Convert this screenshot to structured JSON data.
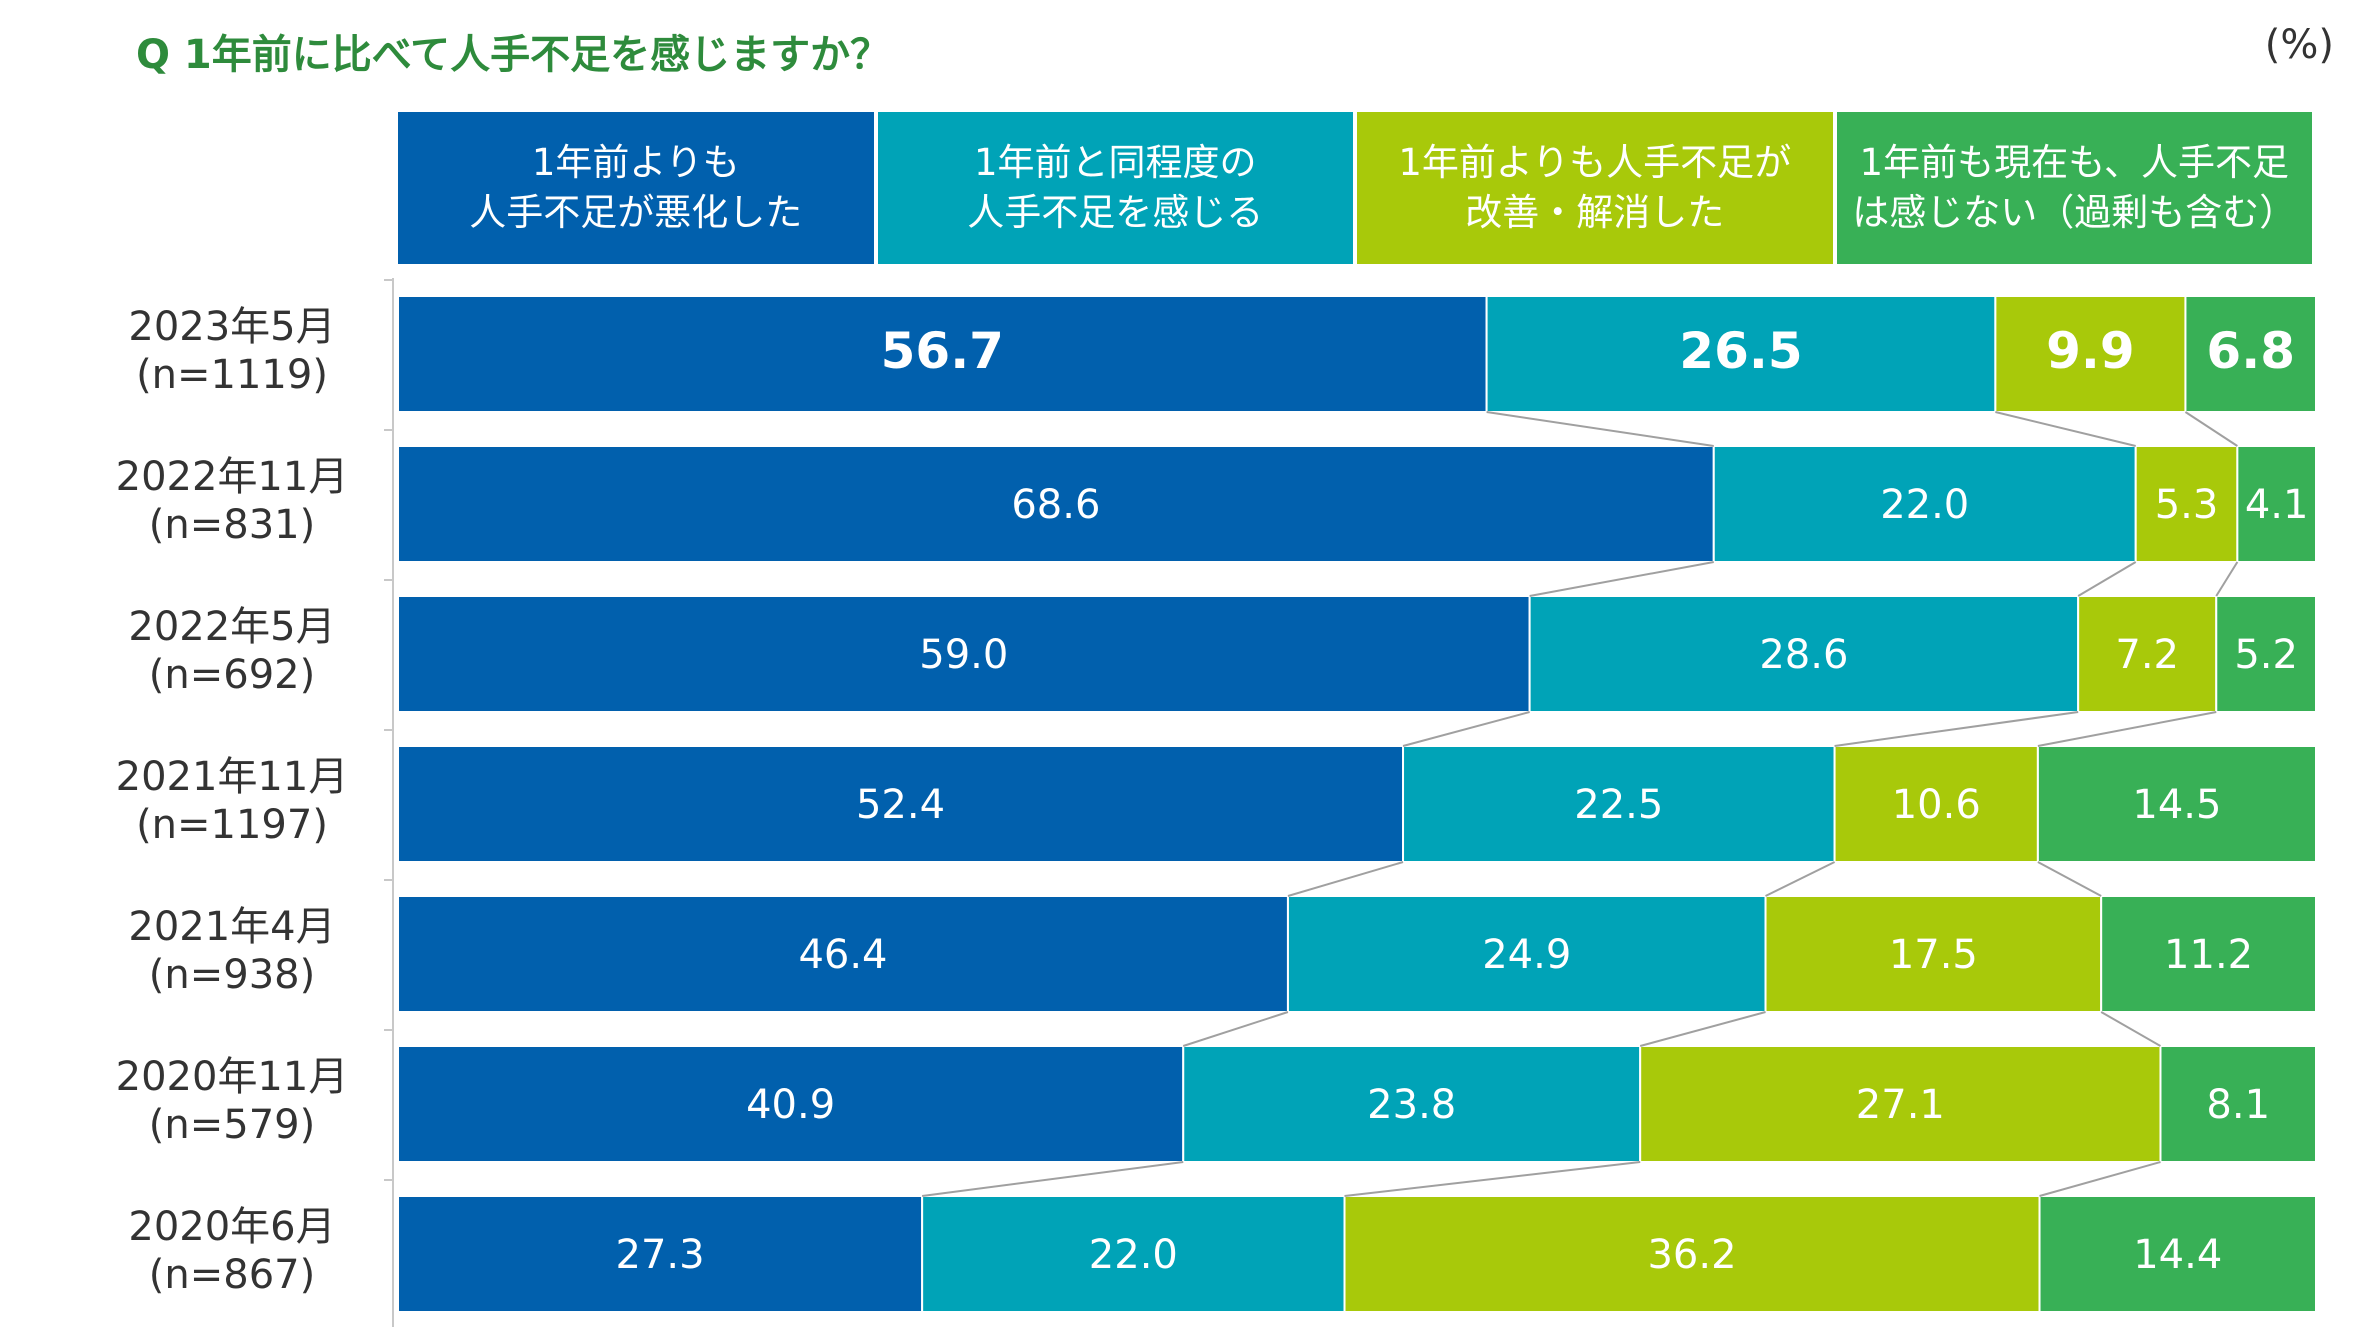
{
  "title": "Q 1年前に比べて人手不足を感じますか？",
  "unit": "(%)",
  "colors": [
    "#0160ad",
    "#00a3b7",
    "#a8c90a",
    "#38b056"
  ],
  "legend": [
    {
      "label": "1年前よりも\n人手不足が悪化した"
    },
    {
      "label": "1年前と同程度の\n人手不足を感じる"
    },
    {
      "label": "1年前よりも人手不足が\n改善・解消した"
    },
    {
      "label": "1年前も現在も、人手不足\nは感じない（過剰も含む）"
    }
  ],
  "chart_data": {
    "type": "bar",
    "orientation": "horizontal",
    "stacked": "percent",
    "title": "Q 1年前に比べて人手不足を感じますか？",
    "unit": "(%)",
    "categories": [
      {
        "line1": "2023年5月",
        "line2": "(n=1119)"
      },
      {
        "line1": "2022年11月",
        "line2": "(n=831)"
      },
      {
        "line1": "2022年5月",
        "line2": "(n=692)"
      },
      {
        "line1": "2021年11月",
        "line2": "(n=1197)"
      },
      {
        "line1": "2021年4月",
        "line2": "(n=938)"
      },
      {
        "line1": "2020年11月",
        "line2": "(n=579)"
      },
      {
        "line1": "2020年6月",
        "line2": "(n=867)"
      }
    ],
    "series": [
      {
        "name": "1年前よりも人手不足が悪化した",
        "values": [
          56.7,
          68.6,
          59.0,
          52.4,
          46.4,
          40.9,
          27.3
        ]
      },
      {
        "name": "1年前と同程度の人手不足を感じる",
        "values": [
          26.5,
          22.0,
          28.6,
          22.5,
          24.9,
          23.8,
          22.0
        ]
      },
      {
        "name": "1年前よりも人手不足が改善・解消した",
        "values": [
          9.9,
          5.3,
          7.2,
          10.6,
          17.5,
          27.1,
          36.2
        ]
      },
      {
        "name": "1年前も現在も、人手不足は感じない（過剰も含む）",
        "values": [
          6.8,
          4.1,
          5.2,
          14.5,
          11.2,
          8.1,
          14.4
        ]
      }
    ],
    "value_labels": [
      [
        "56.7",
        "26.5",
        "9.9",
        "6.8"
      ],
      [
        "68.6",
        "22.0",
        "5.3",
        "4.1"
      ],
      [
        "59.0",
        "28.6",
        "7.2",
        "5.2"
      ],
      [
        "52.4",
        "22.5",
        "10.6",
        "14.5"
      ],
      [
        "46.4",
        "24.9",
        "17.5",
        "11.2"
      ],
      [
        "40.9",
        "23.8",
        "27.1",
        "8.1"
      ],
      [
        "27.3",
        "22.0",
        "36.2",
        "14.4"
      ]
    ],
    "highlight_row": 0,
    "series_lines": true,
    "grid": false
  }
}
